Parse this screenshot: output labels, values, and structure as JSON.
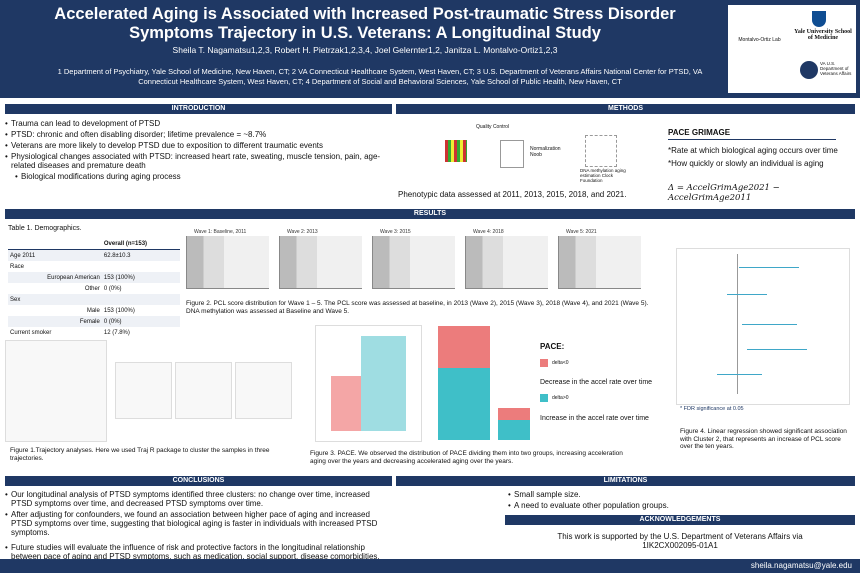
{
  "header": {
    "title": "Accelerated Aging is Associated with Increased Post-traumatic Stress Disorder Symptoms Trajectory in U.S. Veterans: A Longitudinal Study",
    "authors": "Sheila T. Nagamatsu1,2,3, Robert H. Pietrzak1,2,3,4, Joel Gelernter1,2, Janitza L. Montalvo-Ortiz1,2,3",
    "affiliations": "1 Department of Psychiatry, Yale School of Medicine, New Haven, CT; 2 VA Connecticut Healthcare System, West Haven, CT; 3 U.S. Department of Veterans Affairs National Center for PTSD, VA Connecticut Healthcare System, West Haven, CT; 4 Department of Social and Behavioral Sciences, Yale School of Public Health, New Haven, CT",
    "logos": [
      "Montalvo-Ortiz Lab",
      "Yale University School of Medicine",
      "VA U.S. Department of Veterans Affairs"
    ]
  },
  "introduction": {
    "heading": "INTRODUCTION",
    "bullets": [
      "Trauma can lead to development of PTSD",
      "PTSD: chronic and often disabling disorder; lifetime prevalence = ~8.7%",
      "Veterans are more likely to develop PTSD due to exposition to different traumatic events",
      "Physiological changes associated with PTSD: increased heart rate, sweating, muscle tension, pain, age-related diseases and premature death"
    ],
    "sub_bullet": "Biological modifications during aging process"
  },
  "methods": {
    "heading": "METHODS",
    "diagram_labels": [
      "Quality Control",
      "Normalization Noob",
      "DNA methylation aging estimation Clock Foundation"
    ],
    "caption": "Phenotypic data assessed at 2011, 2013, 2015, 2018, and 2021.",
    "pace_title": "PACE GRIMAGE",
    "pace_bullets": [
      "*Rate at which biological aging occurs over time",
      "*How quickly or slowly an individual is aging"
    ],
    "formula": "Δ = AccelGrimAge2021 − AccelGrimAge2011"
  },
  "results": {
    "heading": "RESULTS",
    "table": {
      "caption": "Table 1. Demographics.",
      "header": "Overall (n=153)",
      "rows": [
        [
          "Age 2011",
          "62.8±10.3"
        ],
        [
          "Race",
          ""
        ],
        [
          "European American",
          "153 (100%)"
        ],
        [
          "Other",
          "0 (0%)"
        ],
        [
          "Sex",
          ""
        ],
        [
          "Male",
          "153 (100%)"
        ],
        [
          "Female",
          "0 (0%)"
        ],
        [
          "Current smoker",
          "12 (7.8%)"
        ]
      ]
    },
    "fig2_panels": [
      "Wave 1: Baseline, 2011",
      "Wave 2: 2013",
      "Wave 3: 2015",
      "Wave 4: 2018",
      "Wave 5: 2021"
    ],
    "fig2_caption": "Figure 2. PCL score distribution for Wave 1 – 5. The PCL score was assessed at baseline, in 2013 (Wave 2), 2015 (Wave 3), 2018 (Wave 4), and 2021 (Wave 5). DNA methylation was assessed at Baseline and Wave 5.",
    "fig1_caption": "Figure 1.Trajectory analyses. Here we used Traj R package to cluster the samples in three trajectories.",
    "fig3_legend": {
      "title": "PACE:",
      "neg": "delta<0",
      "neg_text": "Decrease in the accel rate over time",
      "pos": "delta>0",
      "pos_text": "Increase in the accel rate over time"
    },
    "fig3_caption": "Figure 3. PACE. We observed the distribution of PACE dividing them into two groups, increasing acceleration aging over the years and decreasing accelerated aging over the years.",
    "fig4_note": "* FDR significance at 0.05",
    "fig4_caption": "Figure 4. Linear regression showed significant association with Cluster 2, that represents an increase of PCL score over the ten years."
  },
  "conclusions": {
    "heading": "CONCLUSIONS",
    "bullets": [
      "Our longitudinal analysis of PTSD symptoms identified three clusters: no change over time, increased PTSD symptoms over time, and decreased PTSD symptoms over time.",
      "After adjusting for confounders, we found an association between higher pace of aging and increased PTSD symptoms over time, suggesting that biological aging is faster in individuals with increased PTSD symptoms.",
      "Future studies will evaluate the influence of risk and protective factors in the longitudinal relationship between pace of aging and PTSD symptoms, such as medication, social support, disease comorbidities, and others."
    ]
  },
  "limitations": {
    "heading": "LIMITATIONS",
    "bullets": [
      "Small sample size.",
      "A need to evaluate other population groups."
    ]
  },
  "acknowledgements": {
    "heading": "ACKNOWLEDGEMENTS",
    "text": "This work is supported by the U.S. Department of Veterans Affairs via 1IK2CX002095-01A1"
  },
  "footer": {
    "email": "sheila.nagamatsu@yale.edu"
  }
}
